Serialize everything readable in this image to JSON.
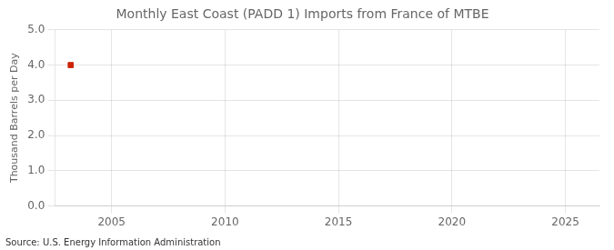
{
  "chart_data": {
    "type": "scatter",
    "title": "Monthly East Coast (PADD 1) Imports from France of MTBE",
    "ylabel": "Thousand Barrels per Day",
    "annotation": "Source: U.S. Energy Information Administration",
    "x": [
      2003.2
    ],
    "values": [
      4.0
    ],
    "color": "#cc2200",
    "marker": "square",
    "xlim": [
      2002.5,
      2026.5
    ],
    "xticks": [
      2005,
      2010,
      2015,
      2020,
      2025
    ],
    "ylim": [
      0.0,
      5.0
    ],
    "yticks": [
      {
        "value": 0,
        "label": "0.0"
      },
      {
        "value": 1,
        "label": "1.0"
      },
      {
        "value": 2,
        "label": "2.0"
      },
      {
        "value": 3,
        "label": "3.0"
      },
      {
        "value": 4,
        "label": "4.0"
      },
      {
        "value": 5,
        "label": "5.0"
      }
    ],
    "grid": true
  }
}
